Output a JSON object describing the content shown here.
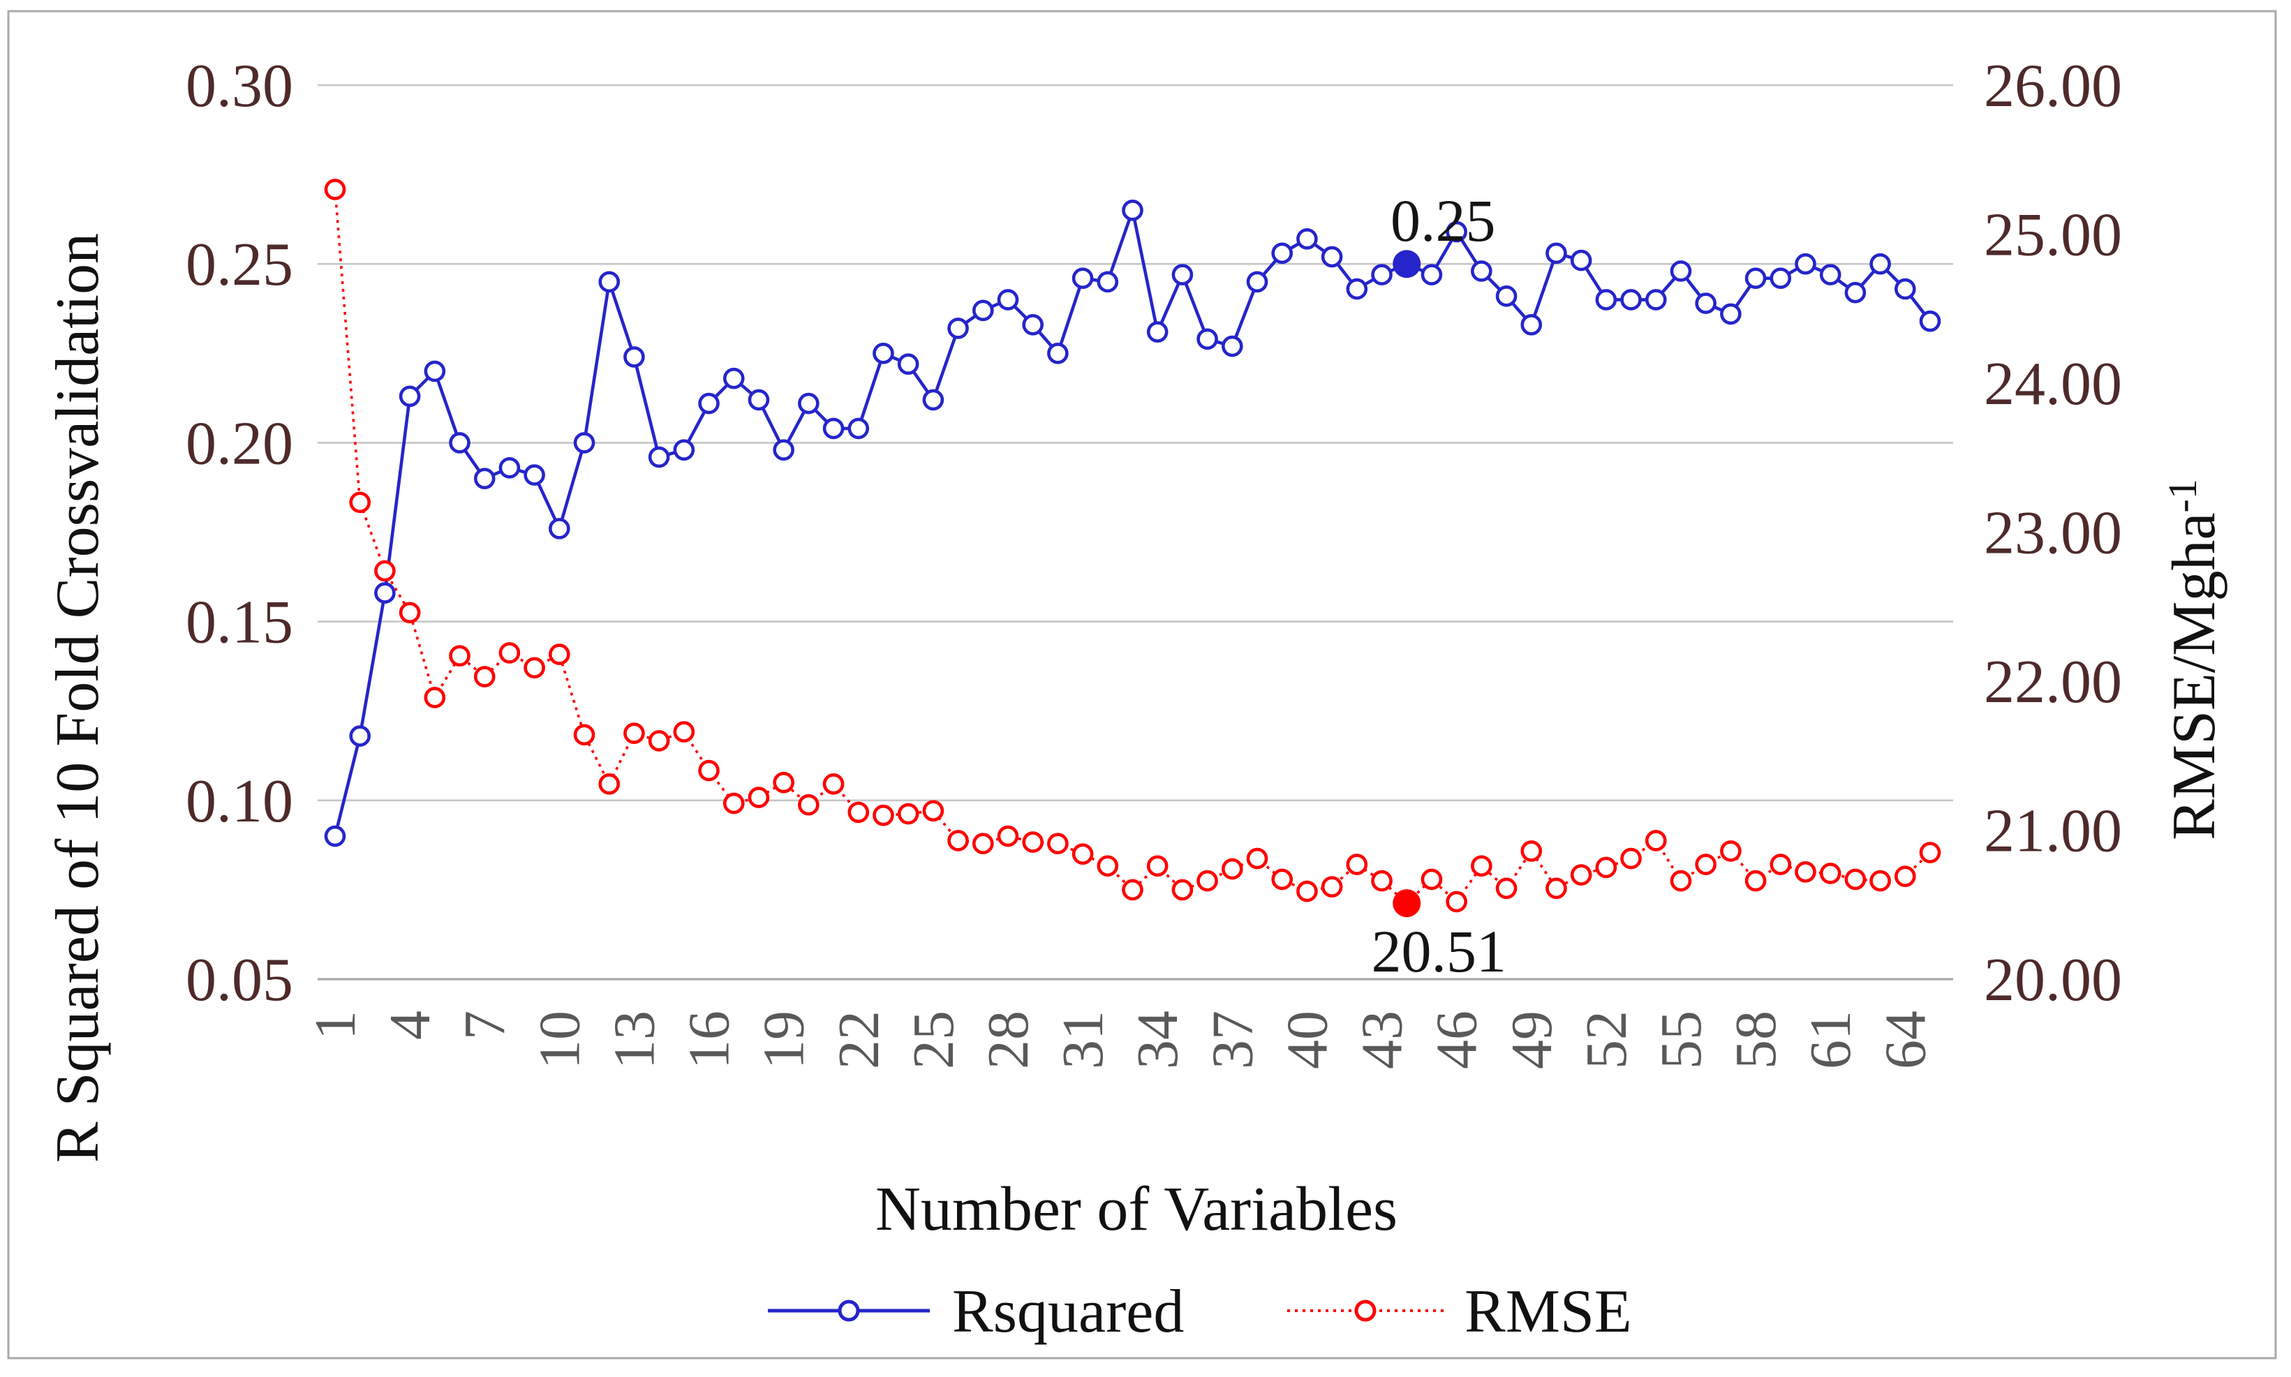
{
  "chart_data": {
    "type": "line",
    "title": "",
    "xlabel": "Number of Variables",
    "x": [
      1,
      2,
      3,
      4,
      5,
      6,
      7,
      8,
      9,
      10,
      11,
      12,
      13,
      14,
      15,
      16,
      17,
      18,
      19,
      20,
      21,
      22,
      23,
      24,
      25,
      26,
      27,
      28,
      29,
      30,
      31,
      32,
      33,
      34,
      35,
      36,
      37,
      38,
      39,
      40,
      41,
      42,
      43,
      44,
      45,
      46,
      47,
      48,
      49,
      50,
      51,
      52,
      53,
      54,
      55,
      56,
      57,
      58,
      59,
      60,
      61,
      62,
      63,
      64,
      65
    ],
    "x_tick_labels": [
      "1",
      "4",
      "7",
      "10",
      "13",
      "16",
      "19",
      "22",
      "25",
      "28",
      "31",
      "34",
      "37",
      "40",
      "43",
      "46",
      "49",
      "52",
      "55",
      "58",
      "61",
      "64"
    ],
    "y_left": {
      "label": "R Squared of 10 Fold Crossvalidation",
      "min": 0.05,
      "max": 0.3,
      "tick_labels": [
        "0.30",
        "0.25",
        "0.20",
        "0.15",
        "0.10",
        "0.05"
      ]
    },
    "y_right": {
      "label_main": "RMSE/Mgha",
      "label_sup": "-1",
      "min": 20.0,
      "max": 26.0,
      "tick_labels": [
        "26.00",
        "25.00",
        "24.00",
        "23.00",
        "22.00",
        "21.00",
        "20.00"
      ]
    },
    "grid": true,
    "legend_position": "bottom",
    "series": [
      {
        "name": "Rsquared",
        "axis": "left",
        "color": "#2525CB",
        "line_style": "solid",
        "marker": "open-circle",
        "highlight_index": 44,
        "highlight_label": "0.25",
        "values": [
          0.09,
          0.118,
          0.158,
          0.213,
          0.22,
          0.2,
          0.19,
          0.193,
          0.191,
          0.176,
          0.2,
          0.245,
          0.224,
          0.196,
          0.198,
          0.211,
          0.218,
          0.212,
          0.198,
          0.211,
          0.204,
          0.204,
          0.225,
          0.222,
          0.212,
          0.232,
          0.237,
          0.24,
          0.233,
          0.225,
          0.246,
          0.245,
          0.265,
          0.231,
          0.247,
          0.229,
          0.227,
          0.245,
          0.253,
          0.257,
          0.252,
          0.243,
          0.247,
          0.25,
          0.247,
          0.259,
          0.248,
          0.241,
          0.233,
          0.253,
          0.251,
          0.24,
          0.24,
          0.24,
          0.248,
          0.239,
          0.236,
          0.246,
          0.246,
          0.25,
          0.247,
          0.242,
          0.25,
          0.243,
          0.234
        ]
      },
      {
        "name": "RMSE",
        "axis": "right",
        "color": "#FF0000",
        "line_style": "dotted",
        "marker": "open-circle",
        "highlight_index": 44,
        "highlight_label": "20.51",
        "values": [
          25.3,
          23.2,
          22.74,
          22.46,
          21.89,
          22.17,
          22.03,
          22.19,
          22.09,
          22.18,
          21.64,
          21.31,
          21.65,
          21.6,
          21.66,
          21.4,
          21.18,
          21.22,
          21.32,
          21.17,
          21.31,
          21.12,
          21.1,
          21.11,
          21.13,
          20.93,
          20.91,
          20.96,
          20.92,
          20.91,
          20.84,
          20.76,
          20.6,
          20.76,
          20.6,
          20.66,
          20.74,
          20.81,
          20.67,
          20.59,
          20.62,
          20.77,
          20.66,
          20.51,
          20.67,
          20.52,
          20.76,
          20.61,
          20.86,
          20.61,
          20.7,
          20.75,
          20.81,
          20.93,
          20.66,
          20.77,
          20.86,
          20.66,
          20.77,
          20.72,
          20.71,
          20.67,
          20.66,
          20.69,
          20.85
        ]
      }
    ],
    "colors": {
      "gridline": "#C6C6C6",
      "axis_line": "#A8A8A8",
      "y_tick_label": "#4E2A2A",
      "x_tick_label": "#595959",
      "annotation": "#141414",
      "border": "#A9A9A9"
    }
  }
}
